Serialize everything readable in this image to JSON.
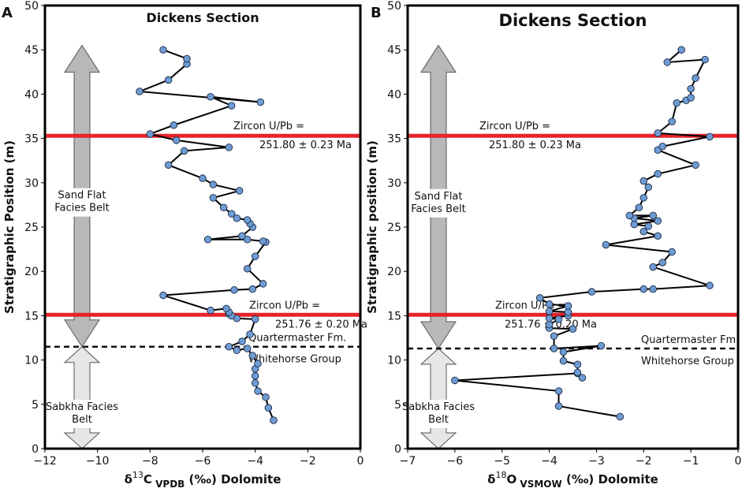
{
  "chart_data": [
    {
      "type": "line",
      "panel_label": "A",
      "title": "Dickens Section",
      "ylabel": "Stratigraphic Position (m)",
      "xlabel": {
        "prefix": "δ",
        "sup": "13",
        "element": "C",
        "sub": "VPDB",
        "suffix": "(‰) Dolomite"
      },
      "xlim": [
        -12,
        0
      ],
      "ylim": [
        0,
        50
      ],
      "xticks": [
        -12,
        -10,
        -8,
        -6,
        -4,
        -2,
        0
      ],
      "yticks": [
        0,
        5,
        10,
        15,
        20,
        25,
        30,
        35,
        40,
        45,
        50
      ],
      "series": [
        {
          "name": "δ13C",
          "x": [
            -3.3,
            -3.5,
            -3.6,
            -3.9,
            -4.0,
            -4.0,
            -4.0,
            -3.9,
            -4.1,
            -4.3,
            -4.7,
            -5.0,
            -4.5,
            -4.2,
            -4.0,
            -4.7,
            -5.0,
            -4.9,
            -5.0,
            -5.1,
            -5.7,
            -7.5,
            -4.8,
            -4.1,
            -3.7,
            -4.3,
            -4.0,
            -3.6,
            -3.7,
            -4.3,
            -5.8,
            -4.5,
            -4.1,
            -4.2,
            -4.3,
            -4.7,
            -4.9,
            -5.2,
            -5.6,
            -4.6,
            -5.6,
            -6.0,
            -7.3,
            -6.7,
            -5.0,
            -7.0,
            -8.0,
            -7.1,
            -4.9,
            -5.7,
            -3.8,
            -8.4,
            -7.3,
            -6.6,
            -6.6,
            -7.5
          ],
          "y": [
            3.2,
            4.6,
            5.8,
            6.5,
            7.4,
            8.2,
            9.0,
            9.6,
            10.5,
            11.3,
            11.1,
            11.5,
            12.1,
            12.9,
            14.6,
            14.7,
            15.2,
            15.0,
            15.4,
            15.8,
            15.6,
            17.3,
            17.9,
            18.0,
            18.6,
            20.3,
            21.7,
            23.3,
            23.4,
            23.6,
            23.6,
            24.0,
            25.0,
            25.4,
            25.8,
            26.0,
            26.5,
            27.2,
            28.3,
            29.1,
            29.8,
            30.5,
            32.0,
            33.6,
            34.0,
            34.8,
            35.5,
            36.5,
            38.7,
            39.7,
            39.1,
            40.3,
            41.6,
            43.4,
            44.0,
            45.0
          ]
        }
      ],
      "annotations": [
        {
          "text_lines": [
            "Zircon U/Pb =",
            "251.80 ± 0.23 Ma"
          ],
          "y": 35.3
        },
        {
          "text_lines": [
            "Zircon U/Pb =",
            "251.76 ± 0.20 Ma"
          ],
          "y": 15.1
        }
      ],
      "boundary": {
        "y": 11.5,
        "upper_label": "Quartermaster Fm.",
        "lower_label": "Whitehorse Group"
      },
      "facies": [
        {
          "label_lines": [
            "Sand Flat",
            "Facies Belt"
          ],
          "from": 11.5,
          "to": 45.5
        },
        {
          "label_lines": [
            "Sabkha Facies",
            "Belt"
          ],
          "from": 0,
          "to": 11.5
        }
      ]
    },
    {
      "type": "line",
      "panel_label": "B",
      "title": "Dickens Section",
      "ylabel": "Stratigraphic position (m)",
      "xlabel": {
        "prefix": "δ",
        "sup": "18",
        "element": "O",
        "sub": "VSMOW",
        "suffix": "(‰) Dolomite"
      },
      "xlim": [
        -7,
        0
      ],
      "ylim": [
        0,
        50
      ],
      "xticks": [
        -7,
        -6,
        -5,
        -4,
        -3,
        -2,
        -1,
        0
      ],
      "yticks": [
        0,
        5,
        10,
        15,
        20,
        25,
        30,
        35,
        40,
        45,
        50
      ],
      "series": [
        {
          "name": "δ18O",
          "x": [
            -2.5,
            -3.8,
            -3.8,
            -6.0,
            -3.4,
            -3.3,
            -3.4,
            -3.4,
            -3.7,
            -3.7,
            -2.9,
            -3.9,
            -3.9,
            -3.5,
            -4.0,
            -4.0,
            -3.8,
            -4.0,
            -3.6,
            -3.6,
            -4.0,
            -3.6,
            -4.0,
            -4.2,
            -3.1,
            -2.0,
            -1.8,
            -0.6,
            -1.8,
            -1.6,
            -1.4,
            -2.8,
            -1.7,
            -2.0,
            -1.9,
            -2.2,
            -1.7,
            -2.2,
            -1.8,
            -2.3,
            -2.1,
            -2.0,
            -1.9,
            -2.0,
            -1.7,
            -0.9,
            -1.7,
            -1.6,
            -0.6,
            -1.7,
            -1.4,
            -1.3,
            -1.1,
            -1.0,
            -1.0,
            -0.9,
            -0.7,
            -1.5,
            -1.2
          ],
          "y": [
            3.6,
            4.8,
            6.5,
            7.7,
            8.5,
            8.0,
            8.6,
            9.5,
            9.9,
            10.9,
            11.6,
            11.3,
            12.7,
            13.5,
            13.6,
            14.0,
            14.6,
            14.7,
            15.0,
            15.4,
            15.5,
            16.1,
            16.3,
            17.0,
            17.7,
            18.0,
            18.0,
            18.4,
            20.5,
            21.0,
            22.2,
            23.0,
            24.0,
            24.5,
            25.1,
            25.3,
            25.7,
            26.0,
            26.3,
            26.3,
            27.2,
            28.3,
            29.5,
            30.2,
            31.0,
            32.0,
            33.7,
            34.1,
            35.2,
            35.6,
            36.9,
            39.0,
            39.3,
            39.6,
            40.6,
            41.8,
            43.9,
            43.6,
            45.0
          ]
        }
      ],
      "annotations": [
        {
          "text_lines": [
            "Zircon U/Pb =",
            "251.80 ± 0.23 Ma"
          ],
          "y": 35.3
        },
        {
          "text_lines": [
            "Zircon U/Pb =",
            "251.76 ± 0.20 Ma"
          ],
          "y": 15.1
        }
      ],
      "boundary": {
        "y": 11.3,
        "upper_label": "Quartermaster Fm.",
        "lower_label": "Whitehorse Group"
      },
      "facies": [
        {
          "label_lines": [
            "Sand Flat",
            "Facies Belt"
          ],
          "from": 11.3,
          "to": 45.5
        },
        {
          "label_lines": [
            "Sabkha Facies",
            "Belt"
          ],
          "from": 0,
          "to": 11.3
        }
      ]
    }
  ],
  "colors": {
    "marker_fill": "#6f9bd4",
    "marker_stroke": "#1a2a44",
    "line": "#000000",
    "red_line": "#e8232b",
    "arrow_dark": "#b8b8b8",
    "arrow_light": "#e6e6e6",
    "arrow_stroke": "#555555"
  }
}
